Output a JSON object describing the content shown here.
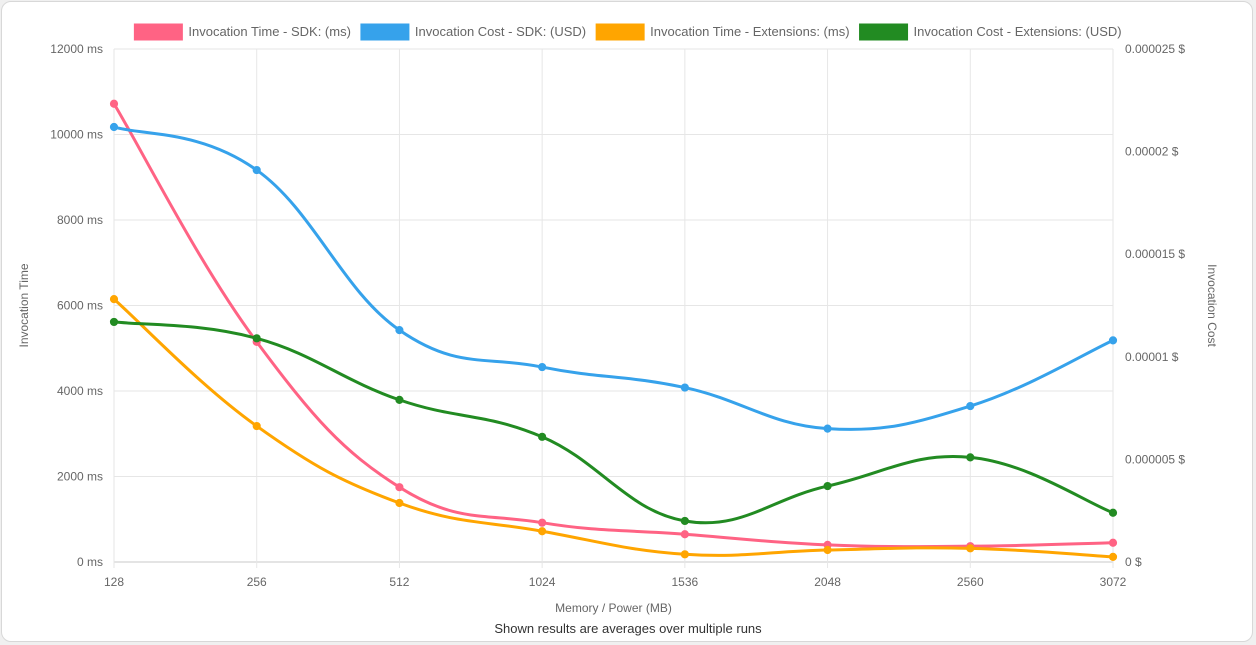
{
  "chart_data": {
    "type": "line",
    "categories": [
      "128",
      "256",
      "512",
      "1024",
      "1536",
      "2048",
      "2560",
      "3072"
    ],
    "xlabel": "Memory / Power (MB)",
    "ylabel_left": "Invocation Time",
    "ylabel_right": "Invocation Cost",
    "y_left_ticks": [
      "0 ms",
      "2000 ms",
      "4000 ms",
      "6000 ms",
      "8000 ms",
      "10000 ms",
      "12000 ms"
    ],
    "y_right_ticks": [
      "0 $",
      "0.000005 $",
      "0.00001 $",
      "0.000015 $",
      "0.00002 $",
      "0.000025 $"
    ],
    "ylim_left": [
      0,
      12000
    ],
    "ylim_right": [
      0,
      2.5e-05
    ],
    "legend_position": "top",
    "grid": true,
    "series": [
      {
        "name": "Invocation Time - SDK: (ms)",
        "axis": "left",
        "color": "#ff6384",
        "values": [
          10720,
          5150,
          1750,
          920,
          650,
          400,
          370,
          450
        ]
      },
      {
        "name": "Invocation Cost - SDK: (USD)",
        "axis": "right",
        "color": "#36a2eb",
        "values": [
          2.12e-05,
          1.91e-05,
          1.13e-05,
          9.5e-06,
          8.5e-06,
          6.5e-06,
          7.6e-06,
          1.08e-05
        ]
      },
      {
        "name": "Invocation Time - Extensions: (ms)",
        "axis": "left",
        "color": "#ffa500",
        "values": [
          6150,
          3180,
          1380,
          720,
          180,
          280,
          320,
          120
        ]
      },
      {
        "name": "Invocation Cost - Extensions: (USD)",
        "axis": "right",
        "color": "#228b22",
        "values": [
          1.17e-05,
          1.09e-05,
          7.9e-06,
          6.1e-06,
          2e-06,
          3.7e-06,
          5.1e-06,
          2.4e-06
        ]
      }
    ]
  },
  "caption": "Shown results are averages over multiple runs"
}
